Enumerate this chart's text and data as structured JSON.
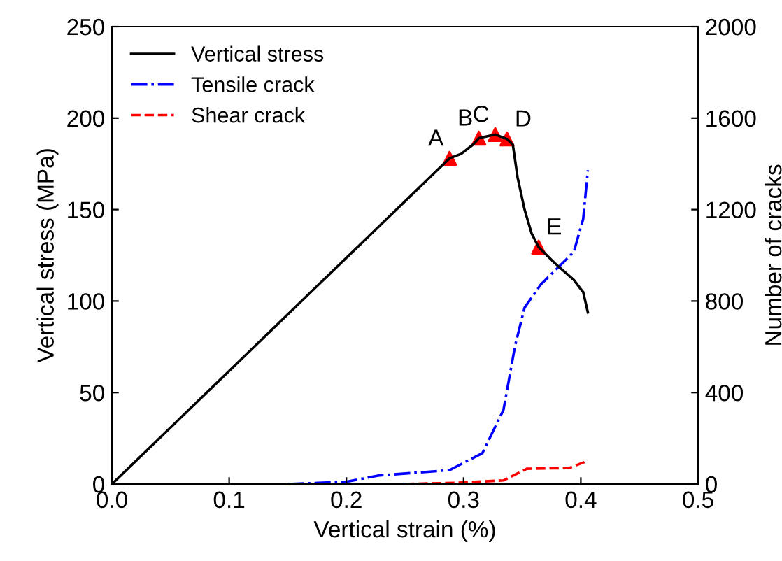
{
  "chart_data": {
    "type": "line",
    "xlabel": "Vertical strain (%)",
    "ylabel": "Vertical stress (MPa)",
    "y2label": "Number of cracks",
    "xlim": [
      0,
      0.5
    ],
    "xticks": [
      {
        "value": 0,
        "label": "0.0"
      },
      0.1,
      0.2,
      0.3,
      0.4,
      0.5
    ],
    "ylim": [
      0,
      250
    ],
    "yticks": [
      0,
      50,
      100,
      150,
      200,
      250
    ],
    "y2lim": [
      0,
      2000
    ],
    "y2ticks": [
      0,
      400,
      800,
      1200,
      1600,
      2000
    ],
    "legend": "top left",
    "grid": false,
    "series": [
      {
        "name": "Vertical stress",
        "color": "#000000",
        "line_style": "solid",
        "x": [
          0,
          0.288,
          0.298,
          0.308,
          0.313,
          0.327,
          0.337,
          0.342,
          0.346,
          0.352,
          0.358,
          0.364,
          0.378,
          0.394,
          0.4,
          0.402,
          0.406
        ],
        "values": [
          0,
          178,
          180.5,
          185.5,
          189,
          191,
          188.6,
          185.5,
          167.7,
          150,
          137,
          129.5,
          120.6,
          111.6,
          106.5,
          105,
          93.8
        ]
      },
      {
        "name": "Tensile crack",
        "color": "#0000ff",
        "line_style": "dashdot",
        "axis": "y2",
        "x": [
          0.15,
          0.2,
          0.227,
          0.288,
          0.316,
          0.334,
          0.344,
          0.352,
          0.366,
          0.394,
          0.402,
          0.406
        ],
        "values": [
          0,
          10,
          37,
          61,
          135,
          324,
          607,
          771,
          873,
          1015,
          1158,
          1372
        ]
      },
      {
        "name": "Shear crack",
        "color": "#ff0000",
        "line_style": "dashed",
        "axis": "y2",
        "x": [
          0.25,
          0.296,
          0.334,
          0.354,
          0.39,
          0.406
        ],
        "values": [
          0,
          6,
          16,
          67,
          70,
          102
        ]
      },
      {
        "type": "scatter",
        "marker": "triangle",
        "color": "#ff0000",
        "x": [
          0.288,
          0.313,
          0.327,
          0.337,
          0.364
        ],
        "values": [
          178,
          189,
          191,
          188.6,
          129.5
        ]
      }
    ],
    "annotations": [
      {
        "text": "A",
        "x": 0.288,
        "y": 178
      },
      {
        "text": "B",
        "x": 0.313,
        "y": 189
      },
      {
        "text": "C",
        "x": 0.327,
        "y": 191
      },
      {
        "text": "D",
        "x": 0.337,
        "y": 188.6
      },
      {
        "text": "E",
        "x": 0.364,
        "y": 129.5
      }
    ]
  }
}
